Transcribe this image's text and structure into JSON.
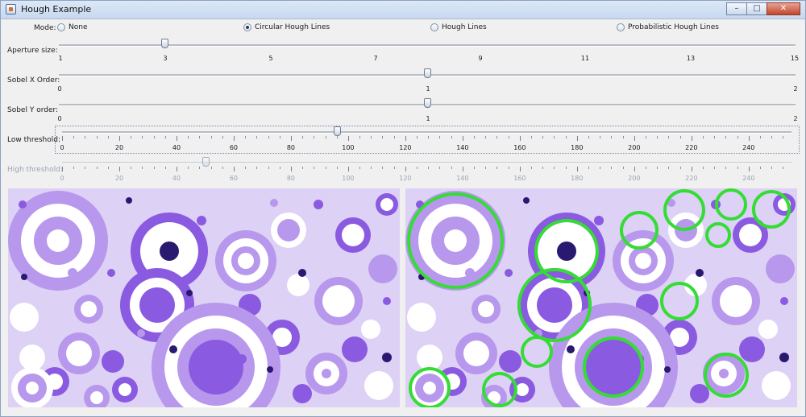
{
  "window": {
    "title": "Hough Example",
    "minimize_icon": "minimize-icon",
    "maximize_icon": "maximize-icon",
    "close_icon": "close-icon"
  },
  "mode": {
    "label": "Mode:",
    "options": [
      {
        "label": "None",
        "selected": false
      },
      {
        "label": "Circular Hough Lines",
        "selected": true
      },
      {
        "label": "Hough Lines",
        "selected": false
      },
      {
        "label": "Probabilistic Hough Lines",
        "selected": false
      }
    ]
  },
  "sliders": {
    "aperture": {
      "label": "Aperture size:",
      "min": 1,
      "max": 15,
      "value": 3,
      "ticks": [
        "1",
        "3",
        "5",
        "7",
        "9",
        "11",
        "13",
        "15"
      ]
    },
    "sobel_x": {
      "label": "Sobel X Order:",
      "min": 0,
      "max": 2,
      "value": 1,
      "ticks": [
        "0",
        "1",
        "2"
      ]
    },
    "sobel_y": {
      "label": "Sobel Y order:",
      "min": 0,
      "max": 2,
      "value": 1,
      "ticks": [
        "0",
        "1",
        "2"
      ]
    },
    "low_threshold": {
      "label": "Low threshold:",
      "min": 0,
      "max": 255,
      "value": 97,
      "ticks": [
        "0",
        "20",
        "40",
        "60",
        "80",
        "100",
        "120",
        "140",
        "160",
        "180",
        "200",
        "220",
        "240"
      ],
      "enabled": true
    },
    "high_threshold": {
      "label": "High threshold:",
      "min": 0,
      "max": 255,
      "value": 50,
      "ticks": [
        "0",
        "20",
        "40",
        "60",
        "80",
        "100",
        "120",
        "140",
        "160",
        "180",
        "200",
        "220",
        "240"
      ],
      "enabled": false
    }
  },
  "images": {
    "left": "original-circles-image",
    "right": "detected-circles-image",
    "detected_circle_color": "#33dd33",
    "palette": [
      "#8a5ae0",
      "#ffffff",
      "#b798ec",
      "#ddd1f5",
      "#2a1970"
    ]
  }
}
